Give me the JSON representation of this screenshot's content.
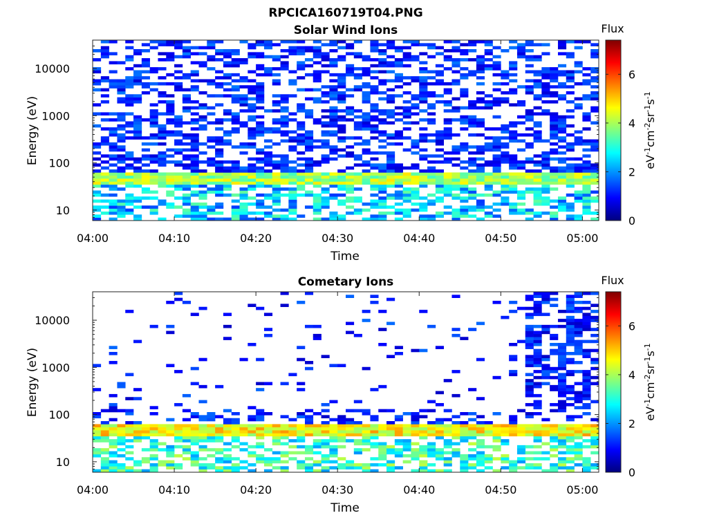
{
  "figure": {
    "title": "RPCICA160719T04.PNG"
  },
  "colorbar": {
    "label": "Flux",
    "unit": "eV-1cm-2sr-1s-1",
    "ticks": [
      "0",
      "2",
      "4",
      "6"
    ],
    "range": [
      0,
      7.4
    ],
    "colormap": [
      "#00007f",
      "#0000ff",
      "#0080ff",
      "#00ffff",
      "#80ff80",
      "#ffff00",
      "#ff8000",
      "#ff0000",
      "#7f0000"
    ]
  },
  "chart_data": [
    {
      "type": "heatmap",
      "title": "Solar Wind Ions",
      "xlabel": "Time",
      "ylabel": "Energy (eV)",
      "yscale": "log",
      "ylim": [
        6,
        40000
      ],
      "xlim": [
        "04:00",
        "05:02"
      ],
      "x_ticks": [
        "04:00",
        "04:10",
        "04:20",
        "04:30",
        "04:40",
        "04:50",
        "05:00"
      ],
      "y_ticks": [
        "10",
        "100",
        "1000",
        "10000"
      ],
      "time_step_minutes": 1,
      "energy_channels": 60,
      "flux_profile": {
        "peak_band_eV": [
          35,
          65
        ],
        "peak_level": 4.2,
        "low_energy_eV": [
          6,
          30
        ],
        "low_energy_level": 2.3,
        "background_level": 0.6,
        "background_eV": [
          70,
          40000
        ]
      }
    },
    {
      "type": "heatmap",
      "title": "Cometary Ions",
      "xlabel": "Time",
      "ylabel": "Energy (eV)",
      "yscale": "log",
      "ylim": [
        6,
        40000
      ],
      "xlim": [
        "04:00",
        "05:02"
      ],
      "x_ticks": [
        "04:00",
        "04:10",
        "04:20",
        "04:30",
        "04:40",
        "04:50",
        "05:00"
      ],
      "y_ticks": [
        "10",
        "100",
        "1000",
        "10000"
      ],
      "time_step_minutes": 1,
      "energy_channels": 60,
      "flux_profile": {
        "peak_band_eV": [
          35,
          65
        ],
        "peak_level": 4.8,
        "low_energy_eV": [
          6,
          30
        ],
        "low_energy_level": 3.0,
        "background_level": 0.5,
        "background_eV": [
          70,
          40000
        ],
        "enhanced_background_after": "04:53"
      }
    }
  ]
}
